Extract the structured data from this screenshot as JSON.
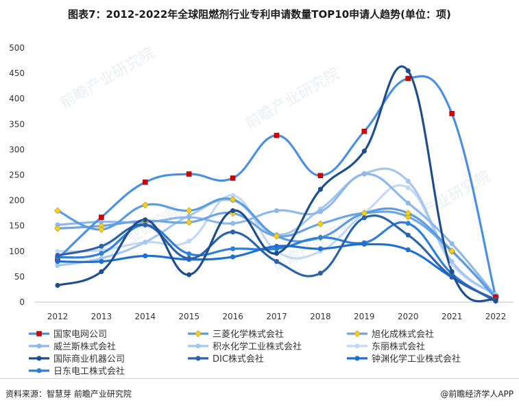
{
  "title": "图表7：2012-2022年全球阻燃剂行业专利申请数量TOP10申请人趋势(单位：项)",
  "source": "资料来源：智慧芽 前瞻产业研究院",
  "brand": "@前瞻经济学人APP",
  "watermark": "前瞻产业研究院",
  "chart_data": {
    "type": "line",
    "smooth": true,
    "title": "图表7：2012-2022年全球阻燃剂行业专利申请数量TOP10申请人趋势(单位：项)",
    "x": [
      "2012",
      "2013",
      "2014",
      "2015",
      "2016",
      "2017",
      "2018",
      "2019",
      "2020",
      "2021",
      "2022"
    ],
    "ylim": [
      0,
      500
    ],
    "yticks": [
      0,
      50,
      100,
      150,
      200,
      250,
      300,
      350,
      400,
      450,
      500
    ],
    "grid": false,
    "legend_position": "bottom",
    "series": [
      {
        "name": "国家电网公司",
        "color": "#4a8fe0",
        "marker": "square",
        "marker_color": "#d40000",
        "values": [
          85,
          167,
          236,
          252,
          244,
          328,
          249,
          336,
          440,
          371,
          10
        ]
      },
      {
        "name": "三菱化学株式会社",
        "color": "#5b9be0",
        "marker": "diamond",
        "marker_color": "#f2d024",
        "values": [
          180,
          143,
          191,
          180,
          202,
          130,
          127,
          175,
          175,
          101,
          8
        ]
      },
      {
        "name": "旭化成株式会社",
        "color": "#6ea4e4",
        "marker": "diamond",
        "marker_color": "#f2d024",
        "values": [
          145,
          150,
          160,
          157,
          175,
          130,
          154,
          175,
          168,
          100,
          10
        ]
      },
      {
        "name": "威兰斯株式会社",
        "color": "#8eb7ea",
        "marker": "circle",
        "marker_color": "#8eb7ea",
        "values": [
          152,
          158,
          157,
          167,
          155,
          180,
          178,
          252,
          195,
          115,
          12
        ]
      },
      {
        "name": "积水化学工业株式会社",
        "color": "#a6c6ee",
        "marker": "circle",
        "marker_color": "#a6c6ee",
        "values": [
          72,
          86,
          118,
          170,
          200,
          133,
          183,
          253,
          238,
          80,
          14
        ]
      },
      {
        "name": "东丽株式会社",
        "color": "#c2d8f3",
        "marker": "circle",
        "marker_color": "#c2d8f3",
        "values": [
          100,
          102,
          118,
          120,
          210,
          100,
          100,
          175,
          225,
          75,
          15
        ]
      },
      {
        "name": "国际商业机器公司",
        "color": "#1f4e8c",
        "marker": "circle",
        "marker_color": "#1f4e8c",
        "values": [
          33,
          60,
          162,
          54,
          180,
          96,
          222,
          297,
          455,
          60,
          3
        ]
      },
      {
        "name": "DIC株式会社",
        "color": "#2b62a8",
        "marker": "circle",
        "marker_color": "#2b62a8",
        "values": [
          92,
          110,
          152,
          86,
          138,
          80,
          57,
          166,
          132,
          50,
          5
        ]
      },
      {
        "name": "钟渊化学工业株式会社",
        "color": "#1e6fd0",
        "marker": "circle",
        "marker_color": "#1e6fd0",
        "values": [
          80,
          80,
          91,
          84,
          89,
          110,
          105,
          114,
          103,
          49,
          2
        ]
      },
      {
        "name": "日东电工株式会社",
        "color": "#2f7fd8",
        "marker": "circle",
        "marker_color": "#2f7fd8",
        "values": [
          88,
          96,
          152,
          95,
          105,
          105,
          127,
          117,
          155,
          56,
          3
        ]
      }
    ]
  }
}
